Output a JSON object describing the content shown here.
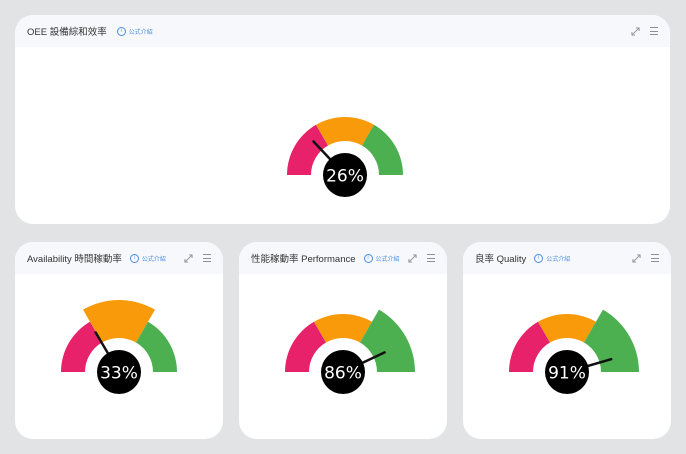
{
  "colors": {
    "red": "#e8226a",
    "orange": "#f99a0a",
    "green": "#4caf50",
    "needle": "#111111",
    "hub": "#000000",
    "header_bg": "#f7f8fc",
    "formula_blue": "#4a8fe0"
  },
  "icons": [
    "info-icon",
    "expand-icon",
    "menu-icon"
  ],
  "cards": [
    {
      "title": "OEE 設備綜和效率",
      "formula_label": "公式介紹",
      "gauge": {
        "value": 26,
        "label": "26%",
        "highlight_band": "none"
      }
    },
    {
      "title": "Availability 時間稼動率",
      "formula_label": "公式介紹",
      "gauge": {
        "value": 33,
        "label": "33%",
        "highlight_band": "orange"
      }
    },
    {
      "title": "性能稼動率 Performance",
      "formula_label": "公式介紹",
      "gauge": {
        "value": 86,
        "label": "86%",
        "highlight_band": "green"
      }
    },
    {
      "title": "良率 Quality",
      "formula_label": "公式介紹",
      "gauge": {
        "value": 91,
        "label": "91%",
        "highlight_band": "green"
      }
    }
  ]
}
